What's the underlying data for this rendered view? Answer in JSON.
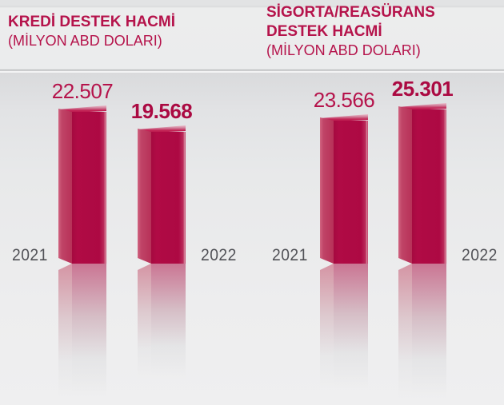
{
  "charts": [
    {
      "title_line1": "KREDİ DESTEK HACMİ",
      "title_line2": "",
      "subtitle": "(MİLYON ABD DOLARI)",
      "bars": [
        {
          "year": "2021",
          "value": 22507,
          "label": "22.507",
          "emphasis": false
        },
        {
          "year": "2022",
          "value": 19568,
          "label": "19.568",
          "emphasis": true
        }
      ]
    },
    {
      "title_line1": "SİGORTA/REASÜRANS",
      "title_line2": "DESTEK HACMİ",
      "subtitle": "(MİLYON ABD DOLARI)",
      "bars": [
        {
          "year": "2021",
          "value": 23566,
          "label": "23.566",
          "emphasis": false
        },
        {
          "year": "2022",
          "value": 25301,
          "label": "25.301",
          "emphasis": true
        }
      ]
    }
  ],
  "chart_data": [
    {
      "type": "bar",
      "title": "KREDİ DESTEK HACMİ",
      "subtitle": "(MİLYON ABD DOLARI)",
      "categories": [
        "2021",
        "2022"
      ],
      "values": [
        22507,
        19568
      ],
      "value_labels": [
        "22.507",
        "19.568"
      ],
      "xlabel": "",
      "ylabel": "MİLYON ABD DOLARI",
      "legend": "none",
      "grid": false,
      "style": "3d-column-with-reflection"
    },
    {
      "type": "bar",
      "title": "SİGORTA/REASÜRANS DESTEK HACMİ",
      "subtitle": "(MİLYON ABD DOLARI)",
      "categories": [
        "2021",
        "2022"
      ],
      "values": [
        23566,
        25301
      ],
      "value_labels": [
        "23.566",
        "25.301"
      ],
      "xlabel": "",
      "ylabel": "MİLYON ABD DOLARI",
      "legend": "none",
      "grid": false,
      "style": "3d-column-with-reflection"
    }
  ],
  "colors": {
    "bar_front": "#b00b45",
    "bar_left_face": "#c04467",
    "bar_top_face": "#c22355",
    "title_text": "#b5134b",
    "year_label_text": "#515257",
    "background": "#ebecee",
    "divider": "#b4b5b7"
  }
}
